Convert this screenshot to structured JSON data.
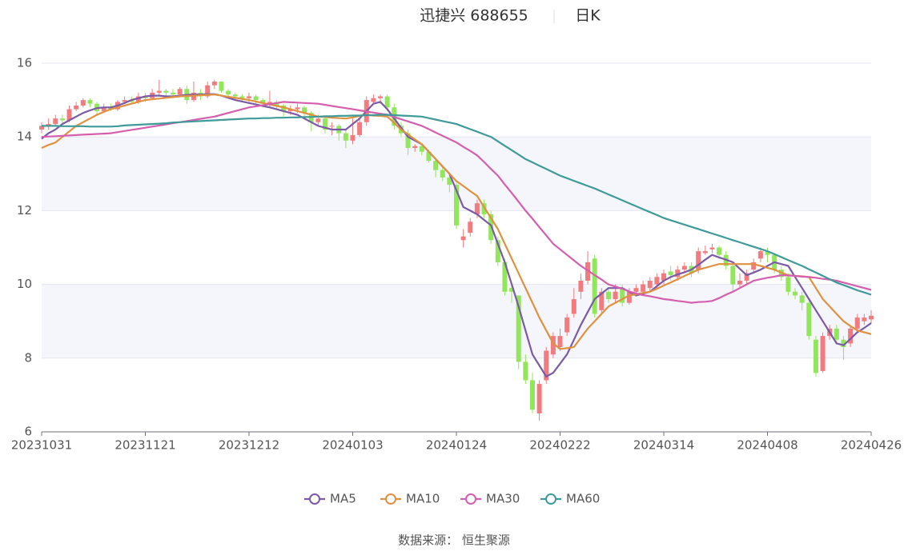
{
  "chart_data": {
    "type": "candlestick",
    "title": "迅捷兴 688655",
    "subtitle": "日K",
    "source": "数据来源： 恒生聚源",
    "up_color": "#f27b7f",
    "down_color": "#92e65b",
    "ylim": [
      6,
      16
    ],
    "yticks": [
      6,
      8,
      10,
      12,
      14,
      16
    ],
    "categories": [
      "20231031",
      null,
      null,
      null,
      null,
      null,
      null,
      null,
      null,
      null,
      null,
      null,
      null,
      null,
      null,
      "20231121",
      null,
      null,
      null,
      null,
      null,
      null,
      null,
      null,
      null,
      null,
      null,
      null,
      null,
      null,
      "20231212",
      null,
      null,
      null,
      null,
      null,
      null,
      null,
      null,
      null,
      null,
      null,
      null,
      null,
      null,
      "20240103",
      null,
      null,
      null,
      null,
      null,
      null,
      null,
      null,
      null,
      null,
      null,
      null,
      null,
      null,
      "20240124",
      null,
      null,
      null,
      null,
      null,
      null,
      null,
      null,
      null,
      null,
      null,
      null,
      null,
      null,
      "20240222",
      null,
      null,
      null,
      null,
      null,
      null,
      null,
      null,
      null,
      null,
      null,
      null,
      null,
      null,
      "20240314",
      null,
      null,
      null,
      null,
      null,
      null,
      null,
      null,
      null,
      null,
      null,
      null,
      null,
      null,
      "20240408",
      null,
      null,
      null,
      null,
      null,
      null,
      null,
      null,
      null,
      null,
      null,
      null,
      null,
      null,
      "20240426"
    ],
    "ohlc": [
      [
        14.2,
        14.3,
        14.1,
        14.4
      ],
      [
        14.3,
        14.35,
        14.2,
        14.5
      ],
      [
        14.35,
        14.5,
        14.3,
        14.6
      ],
      [
        14.5,
        14.45,
        14.35,
        14.6
      ],
      [
        14.45,
        14.75,
        14.4,
        14.85
      ],
      [
        14.75,
        14.85,
        14.7,
        14.95
      ],
      [
        14.85,
        15.0,
        14.8,
        15.05
      ],
      [
        15.0,
        14.9,
        14.8,
        15.05
      ],
      [
        14.9,
        14.7,
        14.6,
        14.95
      ],
      [
        14.7,
        14.8,
        14.65,
        14.9
      ],
      [
        14.8,
        14.75,
        14.7,
        14.9
      ],
      [
        14.75,
        14.95,
        14.7,
        15.0
      ],
      [
        14.95,
        15.0,
        14.9,
        15.1
      ],
      [
        15.0,
        14.95,
        14.9,
        15.1
      ],
      [
        14.95,
        15.1,
        14.9,
        15.2
      ],
      [
        15.1,
        15.05,
        14.95,
        15.2
      ],
      [
        15.05,
        15.2,
        15.0,
        15.3
      ],
      [
        15.2,
        15.25,
        15.1,
        15.55
      ],
      [
        15.25,
        15.2,
        15.1,
        15.3
      ],
      [
        15.2,
        15.15,
        15.05,
        15.3
      ],
      [
        15.15,
        15.3,
        15.1,
        15.35
      ],
      [
        15.3,
        15.0,
        14.9,
        15.4
      ],
      [
        15.0,
        15.2,
        14.95,
        15.5
      ],
      [
        15.2,
        15.1,
        15.0,
        15.3
      ],
      [
        15.1,
        15.4,
        15.05,
        15.5
      ],
      [
        15.4,
        15.5,
        15.3,
        15.55
      ],
      [
        15.5,
        15.25,
        15.2,
        15.5
      ],
      [
        15.25,
        15.15,
        15.1,
        15.3
      ],
      [
        15.15,
        15.1,
        15.0,
        15.2
      ],
      [
        15.1,
        15.05,
        14.95,
        15.15
      ],
      [
        15.05,
        15.1,
        14.95,
        15.2
      ],
      [
        15.1,
        15.0,
        14.9,
        15.15
      ],
      [
        15.0,
        14.9,
        14.8,
        15.05
      ],
      [
        14.9,
        14.95,
        14.8,
        15.25
      ],
      [
        14.95,
        14.85,
        14.75,
        15.0
      ],
      [
        14.85,
        14.7,
        14.55,
        14.9
      ],
      [
        14.7,
        14.75,
        14.6,
        14.85
      ],
      [
        14.75,
        14.8,
        14.65,
        14.9
      ],
      [
        14.8,
        14.65,
        14.55,
        14.85
      ],
      [
        14.65,
        14.4,
        14.15,
        14.7
      ],
      [
        14.4,
        14.5,
        14.3,
        14.6
      ],
      [
        14.5,
        14.2,
        14.1,
        14.55
      ],
      [
        14.3,
        14.3,
        14.05,
        14.4
      ],
      [
        14.3,
        14.1,
        13.9,
        14.35
      ],
      [
        14.1,
        13.9,
        13.7,
        14.2
      ],
      [
        13.9,
        14.05,
        13.8,
        14.5
      ],
      [
        14.05,
        14.4,
        14.0,
        14.5
      ],
      [
        14.4,
        15.0,
        14.3,
        15.1
      ],
      [
        14.95,
        15.05,
        14.9,
        15.15
      ],
      [
        15.05,
        15.1,
        14.9,
        15.15
      ],
      [
        15.1,
        14.8,
        14.7,
        15.15
      ],
      [
        14.8,
        14.3,
        14.2,
        14.9
      ],
      [
        14.3,
        14.1,
        14.0,
        14.4
      ],
      [
        14.1,
        13.7,
        13.5,
        14.2
      ],
      [
        13.7,
        13.75,
        13.6,
        13.8
      ],
      [
        13.75,
        13.6,
        13.5,
        13.8
      ],
      [
        13.6,
        13.35,
        13.3,
        13.65
      ],
      [
        13.35,
        13.1,
        12.9,
        13.4
      ],
      [
        13.1,
        12.9,
        12.8,
        13.2
      ],
      [
        12.9,
        12.7,
        12.5,
        13.0
      ],
      [
        12.7,
        11.6,
        11.5,
        12.75
      ],
      [
        11.2,
        11.3,
        11.0,
        11.5
      ],
      [
        11.4,
        11.7,
        11.3,
        11.8
      ],
      [
        11.9,
        12.2,
        11.8,
        12.3
      ],
      [
        12.2,
        11.9,
        11.8,
        12.3
      ],
      [
        11.9,
        11.2,
        11.1,
        12.0
      ],
      [
        11.2,
        10.6,
        10.5,
        11.3
      ],
      [
        10.6,
        9.8,
        9.7,
        10.7
      ],
      [
        9.9,
        9.8,
        9.5,
        10.0
      ],
      [
        9.7,
        7.9,
        7.7,
        9.7
      ],
      [
        7.9,
        7.4,
        7.3,
        8.1
      ],
      [
        7.4,
        6.6,
        6.5,
        7.6
      ],
      [
        6.5,
        7.3,
        6.3,
        7.4
      ],
      [
        7.4,
        8.2,
        7.3,
        8.3
      ],
      [
        8.1,
        8.6,
        8.0,
        8.7
      ],
      [
        8.3,
        8.6,
        8.2,
        8.8
      ],
      [
        8.7,
        9.1,
        8.6,
        9.2
      ],
      [
        9.2,
        9.6,
        9.1,
        9.9
      ],
      [
        9.8,
        10.1,
        9.6,
        10.3
      ],
      [
        10.1,
        10.6,
        10.0,
        10.9
      ],
      [
        10.7,
        9.2,
        9.1,
        10.8
      ],
      [
        9.3,
        9.8,
        9.2,
        9.9
      ],
      [
        9.8,
        9.6,
        9.5,
        9.9
      ],
      [
        9.6,
        9.8,
        9.5,
        10.0
      ],
      [
        9.9,
        9.5,
        9.4,
        10.0
      ],
      [
        9.5,
        9.8,
        9.45,
        9.9
      ],
      [
        9.8,
        9.9,
        9.7,
        10.0
      ],
      [
        9.8,
        10.0,
        9.7,
        10.1
      ],
      [
        9.9,
        10.1,
        9.8,
        10.2
      ],
      [
        10.0,
        10.2,
        9.9,
        10.3
      ],
      [
        10.1,
        10.3,
        10.0,
        10.4
      ],
      [
        10.35,
        10.25,
        10.1,
        10.5
      ],
      [
        10.2,
        10.4,
        10.1,
        10.5
      ],
      [
        10.4,
        10.5,
        10.3,
        10.6
      ],
      [
        10.5,
        10.3,
        10.2,
        10.6
      ],
      [
        10.4,
        10.9,
        10.3,
        11.0
      ],
      [
        10.85,
        10.9,
        10.8,
        11.05
      ],
      [
        10.95,
        11.0,
        10.85,
        11.1
      ],
      [
        11.0,
        10.8,
        10.7,
        11.05
      ],
      [
        10.8,
        10.5,
        10.4,
        10.9
      ],
      [
        10.5,
        10.0,
        9.8,
        10.55
      ],
      [
        10.0,
        10.1,
        9.9,
        10.3
      ],
      [
        10.1,
        10.3,
        10.0,
        10.4
      ],
      [
        10.4,
        10.6,
        10.3,
        10.7
      ],
      [
        10.7,
        10.9,
        10.6,
        11.0
      ],
      [
        10.9,
        10.8,
        10.6,
        11.0
      ],
      [
        10.8,
        10.4,
        10.3,
        10.85
      ],
      [
        10.4,
        10.2,
        10.1,
        10.5
      ],
      [
        10.2,
        9.8,
        9.7,
        10.3
      ],
      [
        9.8,
        9.7,
        9.6,
        9.9
      ],
      [
        9.7,
        9.5,
        9.3,
        9.8
      ],
      [
        9.5,
        8.6,
        8.5,
        9.55
      ],
      [
        8.5,
        7.6,
        7.5,
        8.6
      ],
      [
        7.65,
        8.6,
        7.6,
        8.7
      ],
      [
        8.6,
        8.8,
        8.5,
        8.9
      ],
      [
        8.8,
        8.5,
        8.4,
        8.9
      ],
      [
        8.5,
        8.3,
        7.95,
        8.6
      ],
      [
        8.4,
        8.8,
        8.3,
        8.9
      ],
      [
        8.8,
        9.1,
        8.7,
        9.2
      ],
      [
        9.0,
        9.1,
        8.9,
        9.2
      ],
      [
        9.05,
        9.15,
        8.95,
        9.3
      ]
    ],
    "series": [
      {
        "name": "MA5",
        "color": "#7b5aa6",
        "values": [
          13.95,
          14.1,
          14.2,
          14.35,
          14.45,
          14.55,
          14.65,
          14.72,
          14.78,
          14.8,
          14.8,
          14.85,
          14.92,
          15.0,
          15.05,
          15.1,
          15.12,
          15.12,
          15.1,
          15.1,
          15.12,
          15.14,
          15.15,
          15.15,
          15.16,
          15.16,
          15.12,
          15.06,
          15.0,
          14.96,
          14.92,
          14.88,
          14.84,
          14.8,
          14.75,
          14.7,
          14.65,
          14.6,
          14.5,
          14.4,
          14.3,
          14.25,
          14.2,
          14.2,
          14.2,
          14.35,
          14.5,
          14.7,
          14.9,
          14.95,
          14.75,
          14.5,
          14.25,
          14.0,
          13.9,
          13.8,
          13.6,
          13.4,
          13.2,
          13.0,
          12.55,
          12.1,
          12.0,
          11.9,
          11.75,
          11.6,
          11.1,
          10.6,
          10.0,
          9.4,
          8.75,
          8.1,
          7.8,
          7.5,
          7.6,
          7.85,
          8.1,
          8.5,
          8.9,
          9.25,
          9.6,
          9.75,
          9.9,
          9.9,
          9.9,
          9.8,
          9.7,
          9.75,
          9.8,
          9.95,
          10.1,
          10.2,
          10.27,
          10.33,
          10.4,
          10.53,
          10.67,
          10.8,
          10.73,
          10.67,
          10.6,
          10.42,
          10.25,
          10.32,
          10.4,
          10.5,
          10.6,
          10.55,
          10.5,
          10.2,
          9.9,
          9.6,
          9.3,
          9.0,
          8.7,
          8.4,
          8.35,
          8.52,
          8.7,
          8.82,
          8.95
        ]
      },
      {
        "name": "MA10",
        "color": "#e0913f",
        "values": [
          13.7,
          13.78,
          13.85,
          14.0,
          14.15,
          14.3,
          14.4,
          14.5,
          14.6,
          14.68,
          14.75,
          14.8,
          14.85,
          14.9,
          14.95,
          15.0,
          15.02,
          15.04,
          15.06,
          15.08,
          15.1,
          15.11,
          15.12,
          15.13,
          15.14,
          15.15,
          15.12,
          15.09,
          15.06,
          15.03,
          15.0,
          14.96,
          14.92,
          14.88,
          14.84,
          14.8,
          14.75,
          14.7,
          14.65,
          14.6,
          14.55,
          14.54,
          14.52,
          14.51,
          14.5,
          14.53,
          14.57,
          14.6,
          14.58,
          14.57,
          14.55,
          14.38,
          14.2,
          14.07,
          13.93,
          13.8,
          13.6,
          13.4,
          13.2,
          13.0,
          12.8,
          12.67,
          12.53,
          12.4,
          12.1,
          11.8,
          11.5,
          11.1,
          10.7,
          10.3,
          9.9,
          9.5,
          9.1,
          8.75,
          8.4,
          8.25,
          8.27,
          8.3,
          8.55,
          8.8,
          9.0,
          9.2,
          9.4,
          9.5,
          9.6,
          9.7,
          9.73,
          9.77,
          9.8,
          9.88,
          9.97,
          10.05,
          10.14,
          10.23,
          10.31,
          10.4,
          10.45,
          10.5,
          10.55,
          10.55,
          10.55,
          10.55,
          10.55,
          10.55,
          10.5,
          10.45,
          10.4,
          10.32,
          10.25,
          10.23,
          10.22,
          10.2,
          9.9,
          9.6,
          9.4,
          9.2,
          9.0,
          8.87,
          8.75,
          8.7,
          8.65
        ]
      },
      {
        "name": "MA30",
        "color": "#d55fae",
        "values": [
          14.0,
          14.01,
          14.02,
          14.03,
          14.04,
          14.05,
          14.06,
          14.07,
          14.08,
          14.09,
          14.1,
          14.13,
          14.16,
          14.19,
          14.22,
          14.25,
          14.28,
          14.31,
          14.34,
          14.37,
          14.4,
          14.43,
          14.46,
          14.49,
          14.52,
          14.55,
          14.6,
          14.65,
          14.7,
          14.75,
          14.8,
          14.83,
          14.86,
          14.89,
          14.92,
          14.95,
          14.94,
          14.93,
          14.92,
          14.91,
          14.9,
          14.87,
          14.84,
          14.81,
          14.78,
          14.75,
          14.72,
          14.69,
          14.66,
          14.63,
          14.6,
          14.54,
          14.48,
          14.42,
          14.36,
          14.3,
          14.21,
          14.12,
          14.03,
          13.94,
          13.85,
          13.73,
          13.62,
          13.5,
          13.32,
          13.13,
          12.95,
          12.71,
          12.48,
          12.24,
          12.0,
          11.78,
          11.55,
          11.33,
          11.1,
          10.95,
          10.8,
          10.65,
          10.5,
          10.38,
          10.25,
          10.13,
          10.0,
          9.94,
          9.88,
          9.81,
          9.75,
          9.71,
          9.68,
          9.64,
          9.6,
          9.58,
          9.55,
          9.53,
          9.5,
          9.52,
          9.53,
          9.55,
          9.63,
          9.72,
          9.8,
          9.9,
          10.0,
          10.1,
          10.14,
          10.18,
          10.21,
          10.25,
          10.24,
          10.23,
          10.21,
          10.2,
          10.18,
          10.15,
          10.13,
          10.1,
          10.05,
          10.0,
          9.95,
          9.9,
          9.85
        ]
      },
      {
        "name": "MA60",
        "color": "#3f9a9a",
        "values": [
          14.3,
          14.3,
          14.3,
          14.29,
          14.29,
          14.29,
          14.29,
          14.28,
          14.28,
          14.28,
          14.28,
          14.29,
          14.31,
          14.32,
          14.33,
          14.34,
          14.35,
          14.36,
          14.37,
          14.39,
          14.4,
          14.41,
          14.42,
          14.43,
          14.44,
          14.45,
          14.46,
          14.47,
          14.48,
          14.49,
          14.5,
          14.5,
          14.51,
          14.51,
          14.52,
          14.52,
          14.53,
          14.53,
          14.54,
          14.54,
          14.55,
          14.56,
          14.56,
          14.57,
          14.57,
          14.58,
          14.58,
          14.59,
          14.59,
          14.6,
          14.6,
          14.59,
          14.58,
          14.57,
          14.56,
          14.55,
          14.51,
          14.47,
          14.43,
          14.39,
          14.35,
          14.28,
          14.21,
          14.14,
          14.07,
          14.0,
          13.88,
          13.76,
          13.64,
          13.52,
          13.4,
          13.31,
          13.22,
          13.13,
          13.04,
          12.95,
          12.88,
          12.81,
          12.74,
          12.67,
          12.6,
          12.52,
          12.44,
          12.36,
          12.28,
          12.2,
          12.12,
          12.04,
          11.96,
          11.88,
          11.8,
          11.74,
          11.68,
          11.62,
          11.56,
          11.5,
          11.44,
          11.38,
          11.32,
          11.26,
          11.2,
          11.14,
          11.08,
          11.02,
          10.96,
          10.9,
          10.82,
          10.74,
          10.66,
          10.58,
          10.5,
          10.41,
          10.32,
          10.23,
          10.14,
          10.05,
          9.98,
          9.91,
          9.84,
          9.78,
          9.72
        ]
      }
    ]
  }
}
